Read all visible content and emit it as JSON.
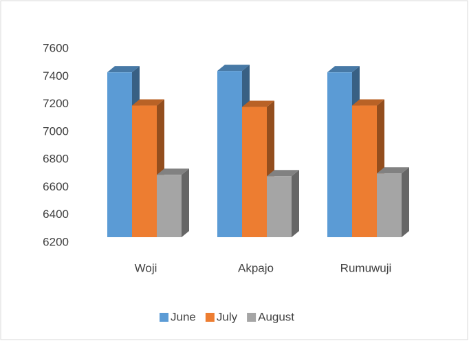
{
  "chart_data": {
    "type": "bar3d",
    "categories": [
      "Woji",
      "Akpajo",
      "Rumuwuji"
    ],
    "series": [
      {
        "name": "June",
        "color": "#5b9bd5",
        "values": [
          7470,
          7480,
          7470
        ]
      },
      {
        "name": "July",
        "color": "#ed7d31",
        "values": [
          7230,
          7220,
          7230
        ]
      },
      {
        "name": "August",
        "color": "#a5a5a5",
        "values": [
          6730,
          6720,
          6740
        ]
      }
    ],
    "ylim": [
      6200,
      7600
    ],
    "yticks": [
      6200,
      6400,
      6600,
      6800,
      7000,
      7200,
      7400,
      7600
    ],
    "legend": "bottom"
  }
}
